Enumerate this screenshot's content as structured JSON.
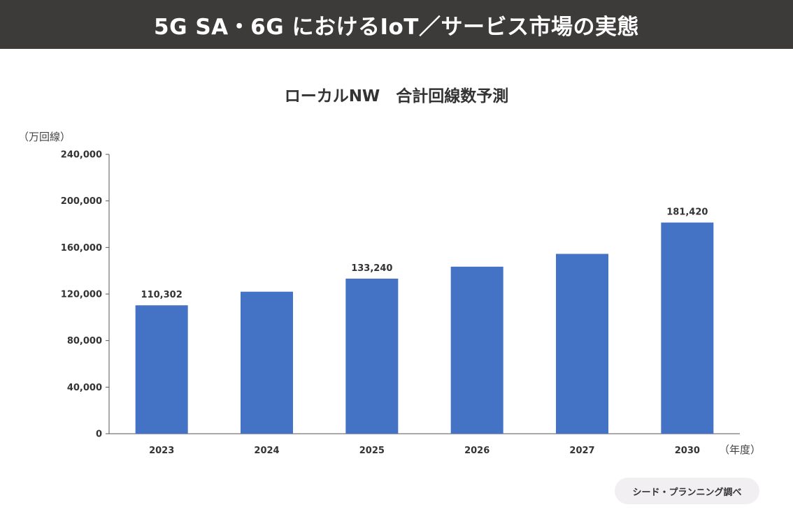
{
  "header": {
    "title": "5G SA・6G におけるIoT／サービス市場の実態"
  },
  "chart_data": {
    "type": "bar",
    "title": "ローカルNW　合計回線数予測",
    "ylabel": "（万回線）",
    "xlabel": "（年度）",
    "categories": [
      "2023",
      "2024",
      "2025",
      "2026",
      "2027",
      "2030"
    ],
    "values": [
      110302,
      122000,
      133240,
      143500,
      154500,
      181420
    ],
    "data_labels": [
      "110,302",
      "",
      "133,240",
      "",
      "",
      "181,420"
    ],
    "y_ticks": [
      "0",
      "40,000",
      "80,000",
      "120,000",
      "160,000",
      "200,000",
      "240,000"
    ],
    "ylim": [
      0,
      240000
    ],
    "bar_color": "#4472c4",
    "grid": false,
    "legend": "none"
  },
  "source": {
    "label": "シード・プランニング調べ"
  }
}
